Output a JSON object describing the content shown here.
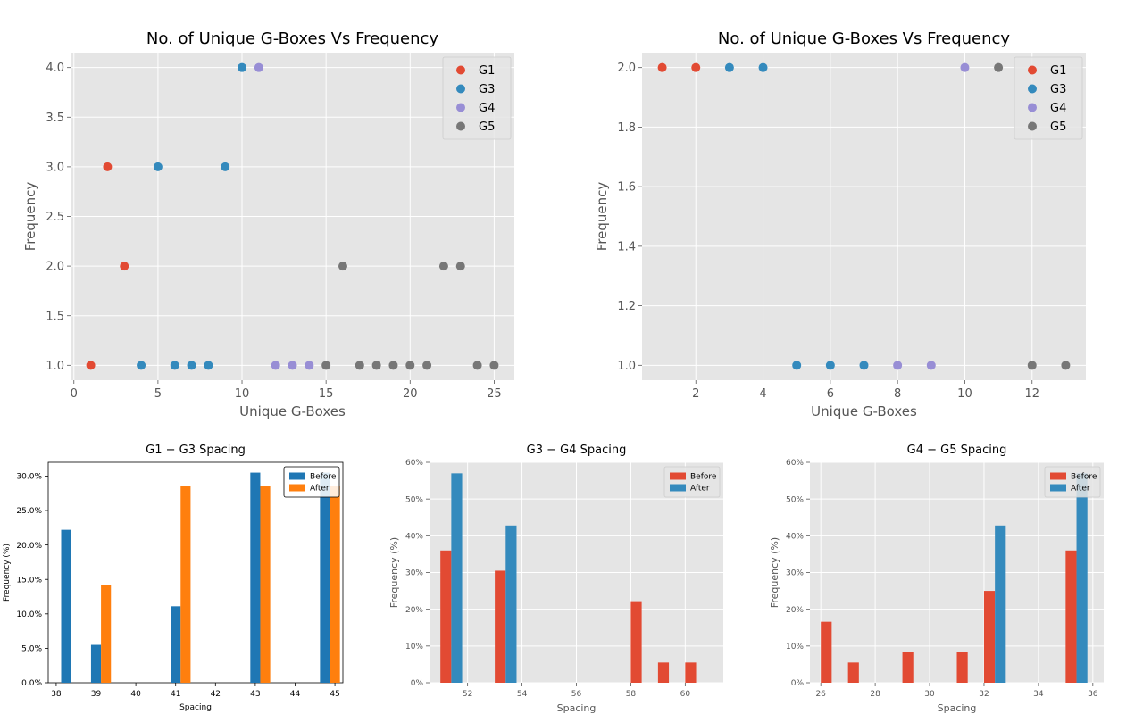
{
  "chart_data": [
    {
      "type": "scatter",
      "title": "No. of Unique G-Boxes Vs Frequency",
      "xlabel": "Unique G-Boxes",
      "ylabel": "Frequency",
      "xlim": [
        -0.2,
        26.2
      ],
      "ylim": [
        0.85,
        4.15
      ],
      "xticks": [
        0,
        5,
        10,
        15,
        20,
        25
      ],
      "yticks": [
        1.0,
        1.5,
        2.0,
        2.5,
        3.0,
        3.5,
        4.0
      ],
      "ytick_decimals": 1,
      "grid": true,
      "legend": "top-right",
      "series": [
        {
          "name": "G1",
          "color": "#E24A33",
          "points": [
            [
              1,
              1
            ],
            [
              2,
              3
            ],
            [
              3,
              2
            ]
          ]
        },
        {
          "name": "G3",
          "color": "#348ABD",
          "points": [
            [
              4,
              1
            ],
            [
              5,
              3
            ],
            [
              6,
              1
            ],
            [
              7,
              1
            ],
            [
              8,
              1
            ],
            [
              9,
              3
            ],
            [
              10,
              4
            ]
          ]
        },
        {
          "name": "G4",
          "color": "#988ED5",
          "points": [
            [
              11,
              4
            ],
            [
              12,
              1
            ],
            [
              13,
              1
            ],
            [
              14,
              1
            ]
          ]
        },
        {
          "name": "G5",
          "color": "#777777",
          "points": [
            [
              15,
              1
            ],
            [
              16,
              2
            ],
            [
              17,
              1
            ],
            [
              18,
              1
            ],
            [
              19,
              1
            ],
            [
              20,
              1
            ],
            [
              21,
              1
            ],
            [
              22,
              2
            ],
            [
              23,
              2
            ],
            [
              24,
              1
            ],
            [
              25,
              1
            ]
          ]
        }
      ]
    },
    {
      "type": "scatter",
      "title": "No. of Unique G-Boxes Vs Frequency",
      "xlabel": "Unique G-Boxes",
      "ylabel": "Frequency",
      "xlim": [
        0.4,
        13.6
      ],
      "ylim": [
        0.95,
        2.05
      ],
      "xticks": [
        2,
        4,
        6,
        8,
        10,
        12
      ],
      "yticks": [
        1.0,
        1.2,
        1.4,
        1.6,
        1.8,
        2.0
      ],
      "ytick_decimals": 1,
      "grid": true,
      "legend": "top-right",
      "series": [
        {
          "name": "G1",
          "color": "#E24A33",
          "points": [
            [
              1,
              2
            ],
            [
              2,
              2
            ]
          ]
        },
        {
          "name": "G3",
          "color": "#348ABD",
          "points": [
            [
              3,
              2
            ],
            [
              4,
              2
            ],
            [
              5,
              1
            ],
            [
              6,
              1
            ],
            [
              7,
              1
            ]
          ]
        },
        {
          "name": "G4",
          "color": "#988ED5",
          "points": [
            [
              8,
              1
            ],
            [
              9,
              1
            ],
            [
              10,
              2
            ]
          ]
        },
        {
          "name": "G5",
          "color": "#777777",
          "points": [
            [
              11,
              2
            ],
            [
              12,
              1
            ],
            [
              13,
              1
            ]
          ]
        }
      ]
    },
    {
      "type": "bar",
      "title": "G1 − G3 Spacing",
      "xlabel": "Spacing",
      "ylabel": "Frequency (%)",
      "xlim": [
        37.8,
        45.2
      ],
      "ylim": [
        0,
        32
      ],
      "xticks": [
        38,
        39,
        40,
        41,
        42,
        43,
        44,
        45
      ],
      "yticks": [
        0,
        5,
        10,
        15,
        20,
        25,
        30
      ],
      "ytick_suffix": "%",
      "ytick_decimals": 1,
      "bar_width": 0.25,
      "style": "classic",
      "legend": "top-right",
      "series": [
        {
          "name": "Before",
          "color": "#1f77b4",
          "x": [
            38.25,
            39.0,
            41.0,
            43.0,
            44.75
          ],
          "values": [
            22.2,
            5.5,
            11.1,
            30.5,
            30.5
          ]
        },
        {
          "name": "After",
          "color": "#ff7f0e",
          "x": [
            39.25,
            41.25,
            43.25,
            45.0
          ],
          "values": [
            14.2,
            28.5,
            28.5,
            28.5
          ]
        }
      ]
    },
    {
      "type": "bar",
      "title": "G3 − G4 Spacing",
      "xlabel": "Spacing",
      "ylabel": "Frequency (%)",
      "xlim": [
        50.6,
        61.4
      ],
      "ylim": [
        0,
        60
      ],
      "xticks": [
        52,
        54,
        56,
        58,
        60
      ],
      "yticks": [
        0,
        10,
        20,
        30,
        40,
        50,
        60
      ],
      "ytick_suffix": "%",
      "ytick_decimals": 0,
      "bar_width": 0.4,
      "style": "ggplot",
      "legend": "top-right",
      "series": [
        {
          "name": "Before",
          "color": "#E24A33",
          "x": [
            51.2,
            53.2,
            58.2,
            59.2,
            60.2
          ],
          "values": [
            36,
            30.5,
            22.2,
            5.5,
            5.5
          ]
        },
        {
          "name": "After",
          "color": "#348ABD",
          "x": [
            51.6,
            53.6
          ],
          "values": [
            57,
            42.8
          ]
        }
      ]
    },
    {
      "type": "bar",
      "title": "G4 − G5 Spacing",
      "xlabel": "Spacing",
      "ylabel": "Frequency (%)",
      "xlim": [
        25.6,
        36.4
      ],
      "ylim": [
        0,
        60
      ],
      "xticks": [
        26,
        28,
        30,
        32,
        34,
        36
      ],
      "yticks": [
        0,
        10,
        20,
        30,
        40,
        50,
        60
      ],
      "ytick_suffix": "%",
      "ytick_decimals": 0,
      "bar_width": 0.4,
      "style": "ggplot",
      "legend": "top-right",
      "series": [
        {
          "name": "Before",
          "color": "#E24A33",
          "x": [
            26.2,
            27.2,
            29.2,
            31.2,
            32.2,
            35.2
          ],
          "values": [
            16.6,
            5.5,
            8.3,
            8.3,
            25,
            36
          ]
        },
        {
          "name": "After",
          "color": "#348ABD",
          "x": [
            32.6,
            35.6
          ],
          "values": [
            42.8,
            57
          ]
        }
      ]
    }
  ]
}
